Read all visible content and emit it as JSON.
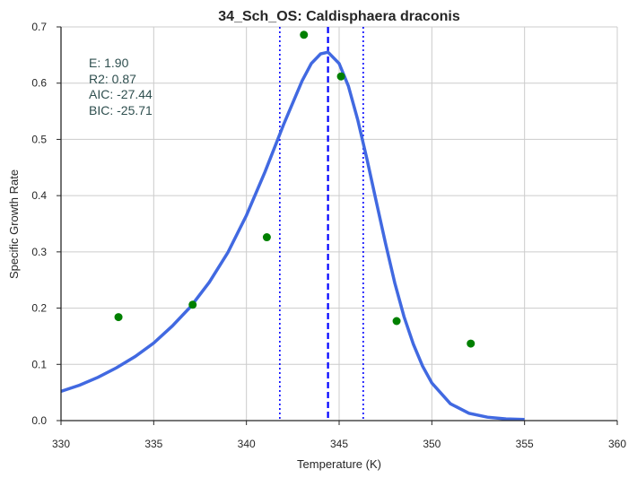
{
  "chart_data": {
    "type": "scatter",
    "title": "34_Sch_OS: Caldisphaera draconis",
    "xlabel": "Temperature (K)",
    "ylabel": "Specific Growth Rate",
    "xlim": [
      330,
      360
    ],
    "ylim": [
      0,
      0.7
    ],
    "xticks": [
      330,
      335,
      340,
      345,
      350,
      355,
      360
    ],
    "yticks": [
      0.0,
      0.1,
      0.2,
      0.3,
      0.4,
      0.5,
      0.6,
      0.7
    ],
    "xtick_labels": [
      "330",
      "335",
      "340",
      "345",
      "350",
      "355",
      "360"
    ],
    "ytick_labels": [
      "0.0",
      "0.1",
      "0.2",
      "0.3",
      "0.4",
      "0.5",
      "0.6",
      "0.7"
    ],
    "grid": true,
    "points": {
      "color": "#008000",
      "x": [
        333.1,
        337.1,
        341.1,
        343.1,
        345.1,
        348.1,
        352.1
      ],
      "y": [
        0.184,
        0.206,
        0.326,
        0.686,
        0.612,
        0.177,
        0.137
      ]
    },
    "fit_curve": {
      "color": "#4169e1",
      "x": [
        330,
        331,
        332,
        333,
        334,
        335,
        336,
        337,
        338,
        339,
        340,
        341,
        342,
        343,
        343.5,
        344,
        344.4,
        345,
        345.5,
        346,
        346.5,
        347,
        347.5,
        348,
        348.5,
        349,
        349.5,
        350,
        351,
        352,
        353,
        354,
        355
      ],
      "y": [
        0.052,
        0.063,
        0.077,
        0.094,
        0.114,
        0.138,
        0.168,
        0.203,
        0.246,
        0.299,
        0.365,
        0.442,
        0.526,
        0.604,
        0.635,
        0.652,
        0.655,
        0.635,
        0.595,
        0.535,
        0.465,
        0.39,
        0.315,
        0.245,
        0.185,
        0.136,
        0.097,
        0.067,
        0.03,
        0.013,
        0.006,
        0.003,
        0.002
      ]
    },
    "vlines": [
      {
        "x": 344.4,
        "style": "dashed",
        "color": "#0000ff"
      },
      {
        "x": 341.8,
        "style": "dotted",
        "color": "#0000ff"
      },
      {
        "x": 346.3,
        "style": "dotted",
        "color": "#0000ff"
      }
    ],
    "stats": [
      {
        "label": "E:  1.90"
      },
      {
        "label": "R2:  0.87"
      },
      {
        "label": "AIC: -27.44"
      },
      {
        "label": "BIC: -25.71"
      }
    ]
  }
}
